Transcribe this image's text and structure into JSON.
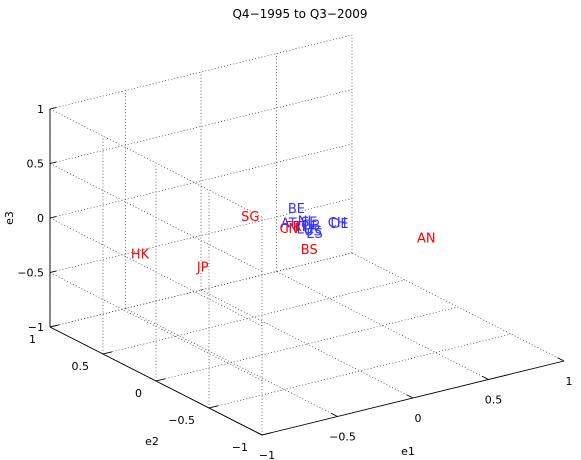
{
  "chart_data": {
    "type": "scatter",
    "title": "Q4−1995 to Q3−2009",
    "xlabel": "e1",
    "ylabel": "e2",
    "zlabel": "e3",
    "xlim": [
      -1,
      1
    ],
    "ylim": [
      -1,
      1
    ],
    "zlim": [
      -1,
      1
    ],
    "grid": true,
    "e1_ticks": [
      "−1",
      "−0.5",
      "0",
      "0.5",
      "1"
    ],
    "e2_ticks": [
      "−1",
      "−0.5",
      "0",
      "0.5",
      "1"
    ],
    "e3_ticks": [
      "−1",
      "−0.5",
      "0",
      "0.5",
      "1"
    ],
    "colors": {
      "red": "#ff0000",
      "blue": "#3333ff"
    },
    "points": [
      {
        "label": "HK",
        "color": "red",
        "e1": -0.86,
        "e2": 0.35,
        "e3": -0.05
      },
      {
        "label": "JP",
        "color": "red",
        "e1": -0.55,
        "e2": 0.2,
        "e3": -0.2
      },
      {
        "label": "SG",
        "color": "red",
        "e1": -0.2,
        "e2": 0.25,
        "e3": 0.12
      },
      {
        "label": "BS",
        "color": "red",
        "e1": 0.05,
        "e2": 0.05,
        "e3": -0.17
      },
      {
        "label": "AN",
        "color": "red",
        "e1": 0.72,
        "e2": -0.1,
        "e3": -0.22
      },
      {
        "label": "CN",
        "color": "red",
        "e1": -0.05,
        "e2": 0.1,
        "e3": 0.03
      },
      {
        "label": "FR",
        "color": "red",
        "e1": -0.02,
        "e2": 0.1,
        "e3": 0.04
      },
      {
        "label": "IT",
        "color": "red",
        "e1": 0.0,
        "e2": 0.05,
        "e3": 0.06
      },
      {
        "label": "BE",
        "color": "blue",
        "e1": 0.0,
        "e2": 0.1,
        "e3": 0.2
      },
      {
        "label": "CH",
        "color": "blue",
        "e1": 0.2,
        "e2": 0.0,
        "e3": 0.05
      },
      {
        "label": "DE",
        "color": "blue",
        "e1": 0.25,
        "e2": 0.05,
        "e3": 0.0
      },
      {
        "label": "AT",
        "color": "blue",
        "e1": -0.05,
        "e2": 0.1,
        "e3": 0.08
      },
      {
        "label": "ES",
        "color": "blue",
        "e1": 0.05,
        "e2": 0.0,
        "e3": 0.0
      },
      {
        "label": "NL",
        "color": "blue",
        "e1": 0.03,
        "e2": 0.05,
        "e3": 0.1
      },
      {
        "label": "SE",
        "color": "blue",
        "e1": 0.05,
        "e2": 0.05,
        "e3": 0.08
      },
      {
        "label": "LU",
        "color": "blue",
        "e1": 0.02,
        "e2": 0.05,
        "e3": 0.03
      },
      {
        "label": "GB",
        "color": "blue",
        "e1": 0.06,
        "e2": 0.05,
        "e3": 0.05
      },
      {
        "label": "US",
        "color": "blue",
        "e1": 0.04,
        "e2": 0.0,
        "e3": 0.03
      }
    ]
  }
}
